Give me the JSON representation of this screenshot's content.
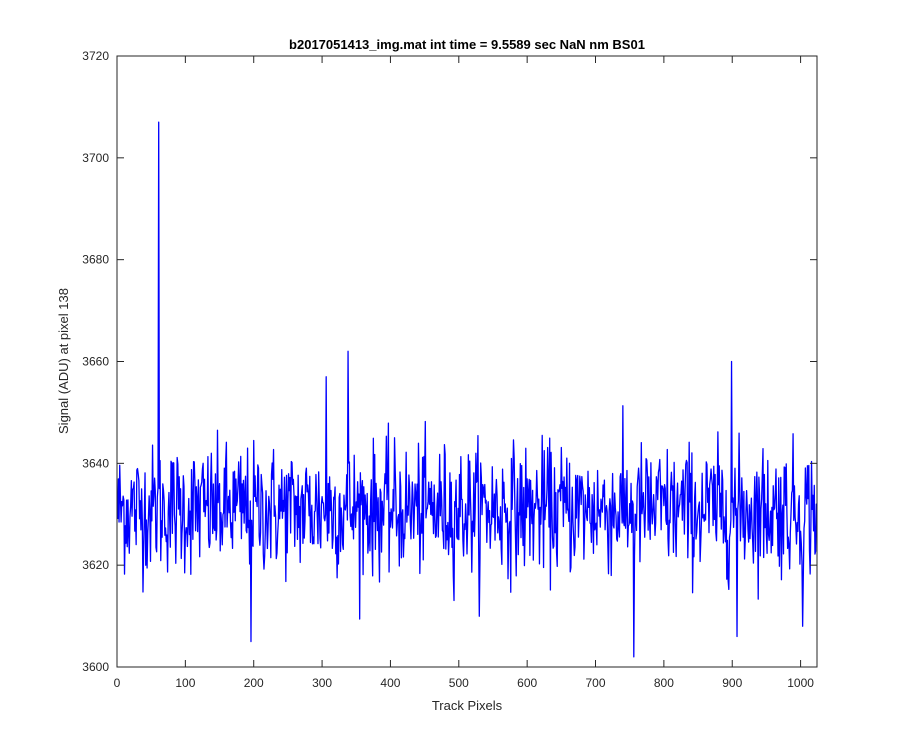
{
  "chart_data": {
    "type": "line",
    "title": "b2017051413_img.mat int time = 9.5589 sec  NaN nm BS01",
    "xlabel": "Track Pixels",
    "ylabel": "Signal (ADU) at pixel 138",
    "xlim": [
      0,
      1024
    ],
    "ylim": [
      3600,
      3720
    ],
    "xticks": [
      0,
      100,
      200,
      300,
      400,
      500,
      600,
      700,
      800,
      900,
      1000
    ],
    "yticks": [
      3600,
      3620,
      3640,
      3660,
      3680,
      3700,
      3720
    ],
    "grid": false,
    "legend": "none",
    "series": [
      {
        "color": "#0000ff",
        "baseline_mean": 3631,
        "noise_range": [
          3605,
          3652
        ],
        "n_points": 1024,
        "spikes": [
          {
            "x": 60,
            "y": 3707
          },
          {
            "x": 195,
            "y": 3605
          },
          {
            "x": 305,
            "y": 3657
          },
          {
            "x": 337,
            "y": 3662
          },
          {
            "x": 755,
            "y": 3602
          },
          {
            "x": 898,
            "y": 3660
          },
          {
            "x": 906,
            "y": 3606
          },
          {
            "x": 1002,
            "y": 3608
          }
        ]
      }
    ]
  }
}
